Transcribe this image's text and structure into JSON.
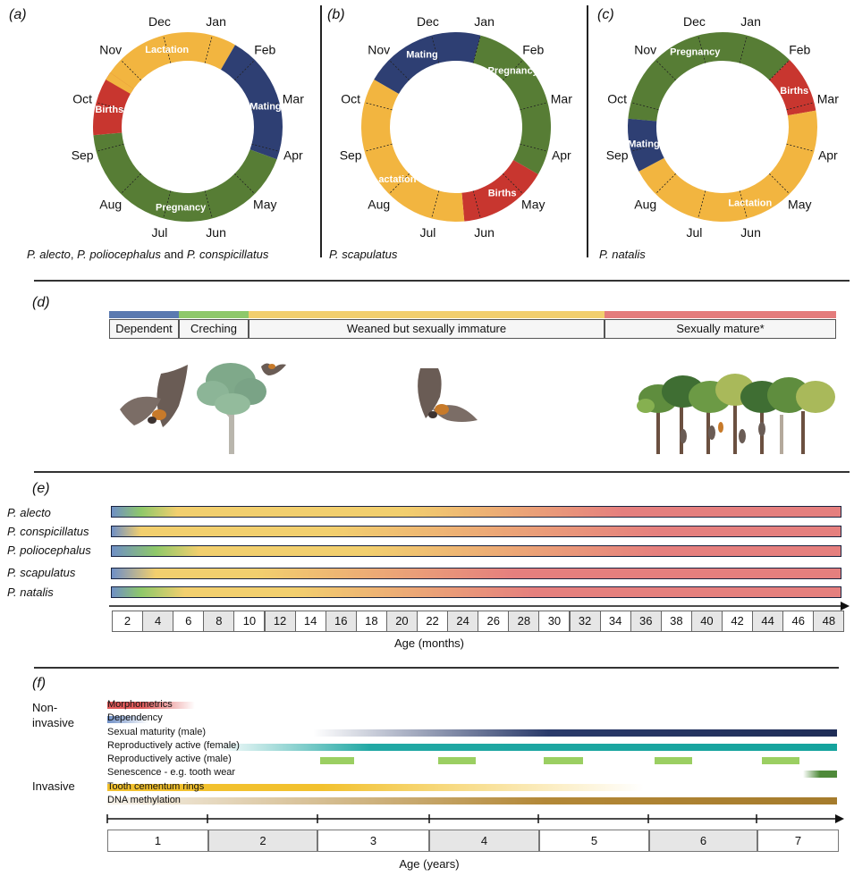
{
  "panels": {
    "a": {
      "label": "(a)",
      "caption_parts": [
        "P. alecto",
        ", ",
        "P. poliocephalus",
        " and ",
        "P. conspicillatus"
      ],
      "months": {
        "Jan": "Jan",
        "Feb": "Feb",
        "Mar": "Mar",
        "Apr": "Apr",
        "May": "May",
        "Jun": "Jun",
        "Jul": "Jul",
        "Aug": "Aug",
        "Sep": "Sep",
        "Oct": "Oct",
        "Nov": "Nov",
        "Dec": "Dec"
      },
      "segments": [
        {
          "name": "Lactation",
          "color": "#f2b540"
        },
        {
          "name": "Mating",
          "color": "#2e3f73"
        },
        {
          "name": "Pregnancy",
          "color": "#577d35"
        },
        {
          "name": "Births",
          "color": "#c8362f"
        }
      ]
    },
    "b": {
      "label": "(b)",
      "caption": "P. scapulatus",
      "segments": [
        {
          "name": "Mating",
          "color": "#2e3f73"
        },
        {
          "name": "Pregnancy",
          "color": "#577d35"
        },
        {
          "name": "Births",
          "color": "#c8362f"
        },
        {
          "name": "Lactation",
          "color": "#f2b540"
        }
      ]
    },
    "c": {
      "label": "(c)",
      "caption": "P. natalis",
      "segments": [
        {
          "name": "Pregnancy",
          "color": "#577d35"
        },
        {
          "name": "Births",
          "color": "#c8362f"
        },
        {
          "name": "Lactation",
          "color": "#f2b540"
        },
        {
          "name": "Mating",
          "color": "#2e3f73"
        }
      ]
    },
    "d": {
      "label": "(d)",
      "stages": [
        {
          "name": "Dependent",
          "color": "#5b7ab0"
        },
        {
          "name": "Creching",
          "color": "#8ec86a"
        },
        {
          "name": "Weaned but sexually immature",
          "color": "#f2cf6e"
        },
        {
          "name": "Sexually mature*",
          "color": "#e47c7c"
        }
      ]
    },
    "e": {
      "label": "(e)",
      "species": [
        "P. alecto",
        "P. conspicillatus",
        "P. poliocephalus",
        "P. scapulatus",
        "P. natalis"
      ],
      "axis_ticks": [
        "2",
        "4",
        "6",
        "8",
        "10",
        "12",
        "14",
        "16",
        "18",
        "20",
        "22",
        "24",
        "26",
        "28",
        "30",
        "32",
        "34",
        "36",
        "38",
        "40",
        "42",
        "44",
        "46",
        "48"
      ],
      "axis_title": "Age (months)"
    },
    "f": {
      "label": "(f)",
      "group_noninvasive": "Non-\ninvasive",
      "group_invasive": "Invasive",
      "methods": [
        "Morphometrics",
        "Dependency",
        "Sexual maturity (male)",
        "Reproductively active (female)",
        "Reproductively active (male)",
        "Senescence - e.g. tooth wear",
        "Tooth cementum rings",
        "DNA methylation"
      ],
      "axis_ticks": [
        "1",
        "2",
        "3",
        "4",
        "5",
        "6",
        "7"
      ],
      "axis_title": "Age (years)"
    }
  }
}
